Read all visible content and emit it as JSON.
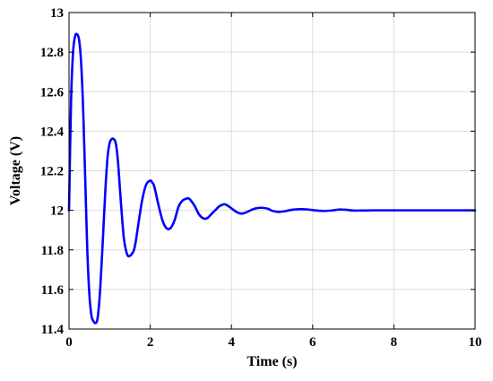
{
  "chart_data": {
    "type": "line",
    "title": "",
    "xlabel": "Time (s)",
    "ylabel": "Voltage (V)",
    "xlim": [
      0,
      10
    ],
    "ylim": [
      11.4,
      13
    ],
    "xticks": [
      0,
      2,
      4,
      6,
      8,
      10
    ],
    "xtick_labels": [
      "0",
      "2",
      "4",
      "6",
      "8",
      "10"
    ],
    "yticks": [
      11.4,
      11.6,
      11.8,
      12,
      12.2,
      12.4,
      12.6,
      12.8,
      13
    ],
    "ytick_labels": [
      "11.4",
      "11.6",
      "11.8",
      "12",
      "12.2",
      "12.4",
      "12.6",
      "12.8",
      "13"
    ],
    "grid": true,
    "series": [
      {
        "color": "#0000ff",
        "x": [
          0,
          0.05,
          0.1,
          0.15,
          0.2,
          0.25,
          0.3,
          0.35,
          0.4,
          0.45,
          0.5,
          0.55,
          0.6,
          0.65,
          0.7,
          0.75,
          0.8,
          0.85,
          0.9,
          0.95,
          1.0,
          1.05,
          1.1,
          1.15,
          1.2,
          1.25,
          1.3,
          1.35,
          1.4,
          1.45,
          1.5,
          1.55,
          1.6,
          1.65,
          1.7,
          1.8,
          1.9,
          2.0,
          2.05,
          2.1,
          2.2,
          2.3,
          2.4,
          2.5,
          2.6,
          2.7,
          2.8,
          2.9,
          2.95,
          3.0,
          3.1,
          3.2,
          3.3,
          3.4,
          3.5,
          3.6,
          3.7,
          3.8,
          3.85,
          3.9,
          4.0,
          4.1,
          4.2,
          4.3,
          4.4,
          4.5,
          4.6,
          4.75,
          4.9,
          5.0,
          5.15,
          5.3,
          5.5,
          5.7,
          5.9,
          6.1,
          6.3,
          6.5,
          6.65,
          6.8,
          7.0,
          7.2,
          7.5,
          8.0,
          9.0,
          10.0
        ],
        "y": [
          12.0,
          12.55,
          12.8,
          12.88,
          12.89,
          12.86,
          12.74,
          12.5,
          12.15,
          11.8,
          11.58,
          11.47,
          11.44,
          11.43,
          11.45,
          11.55,
          11.72,
          11.92,
          12.12,
          12.27,
          12.34,
          12.36,
          12.36,
          12.34,
          12.26,
          12.12,
          11.98,
          11.86,
          11.8,
          11.77,
          11.77,
          11.78,
          11.8,
          11.85,
          11.92,
          12.05,
          12.13,
          12.15,
          12.14,
          12.12,
          12.03,
          11.95,
          11.91,
          11.91,
          11.95,
          12.02,
          12.05,
          12.06,
          12.06,
          12.05,
          12.02,
          11.98,
          11.96,
          11.96,
          11.98,
          12.0,
          12.02,
          12.03,
          12.03,
          12.025,
          12.01,
          11.995,
          11.985,
          11.985,
          11.993,
          12.003,
          12.01,
          12.013,
          12.008,
          11.998,
          11.992,
          11.995,
          12.003,
          12.006,
          12.004,
          11.999,
          11.997,
          12.0,
          12.004,
          12.003,
          11.999,
          11.999,
          12.0,
          12.0,
          12.0,
          12.0
        ]
      }
    ]
  }
}
